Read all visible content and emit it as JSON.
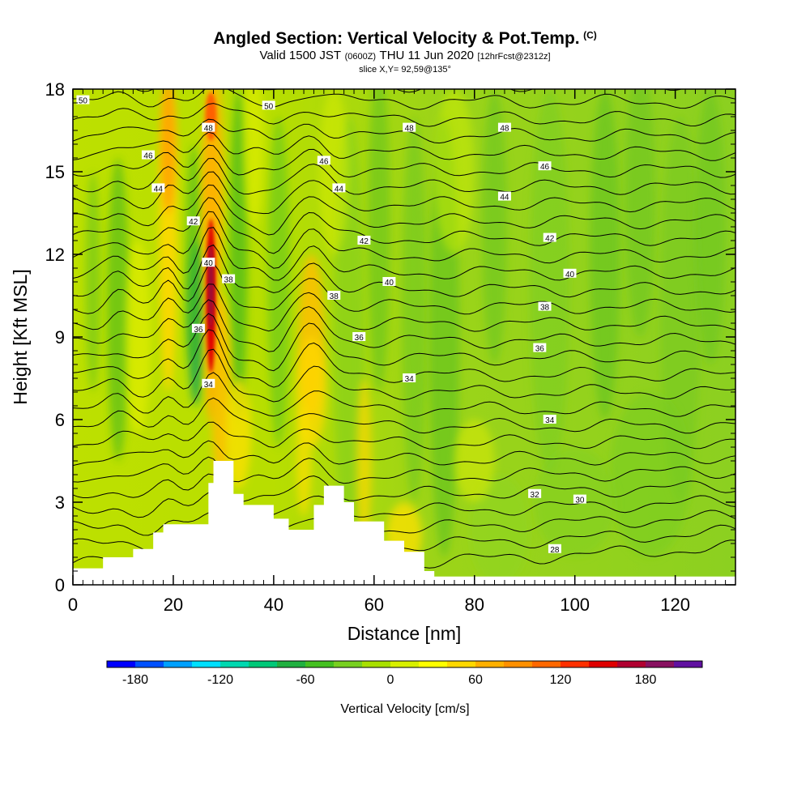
{
  "header": {
    "title": "Angled Section: Vertical Velocity & Pot.Temp.",
    "title_tag": "(C)",
    "valid_prefix": "Valid 1500 JST",
    "valid_z": "(0600Z)",
    "valid_date": "THU 11 Jun 2020",
    "forecast": "[12hrFcst@2312z]",
    "slice": "slice X,Y= 92,59@135°"
  },
  "chart_data": {
    "type": "heatmap",
    "title": "Angled Section: Vertical Velocity & Pot.Temp.",
    "xlabel": "Distance [nm]",
    "ylabel": "Height [Kft MSL]",
    "xlim": [
      0,
      132
    ],
    "ylim": [
      0,
      18
    ],
    "xticks": [
      "0",
      "20",
      "40",
      "60",
      "80",
      "100",
      "120"
    ],
    "yticks": [
      "0",
      "3",
      "6",
      "9",
      "12",
      "15",
      "18"
    ],
    "updraft_cores": [
      {
        "x": 27.5,
        "y_bottom": 7.5,
        "y_top": 13.5,
        "peak_cms": 180
      },
      {
        "x": 19,
        "y_bottom": 7.0,
        "y_top": 18.0,
        "peak_cms": 80
      },
      {
        "x": 48,
        "y_bottom": 6.0,
        "y_top": 11.0,
        "peak_cms": 60
      }
    ],
    "terrain_profile": [
      [
        0,
        0.6
      ],
      [
        6,
        1.0
      ],
      [
        12,
        1.3
      ],
      [
        16,
        1.9
      ],
      [
        18,
        2.2
      ],
      [
        24,
        2.2
      ],
      [
        27,
        3.7
      ],
      [
        28,
        4.5
      ],
      [
        30,
        4.5
      ],
      [
        32,
        3.3
      ],
      [
        34,
        2.9
      ],
      [
        38,
        2.9
      ],
      [
        40,
        2.4
      ],
      [
        43,
        2.0
      ],
      [
        46,
        2.0
      ],
      [
        48,
        2.9
      ],
      [
        50,
        3.6
      ],
      [
        52,
        3.6
      ],
      [
        54,
        3.0
      ],
      [
        56,
        2.3
      ],
      [
        58,
        2.3
      ],
      [
        62,
        1.6
      ],
      [
        66,
        1.2
      ],
      [
        70,
        0.5
      ],
      [
        72,
        0.3
      ],
      [
        132,
        0.3
      ]
    ],
    "theta_contours": [
      {
        "level": "28",
        "label_x": 96,
        "label_y": 1.3
      },
      {
        "level": "30",
        "label_x": 101,
        "label_y": 3.1
      },
      {
        "level": "32",
        "label_x": 92,
        "label_y": 3.3
      },
      {
        "level": "34",
        "label_x": 27,
        "label_y": 7.3
      },
      {
        "level": "34",
        "label_x": 67,
        "label_y": 7.5
      },
      {
        "level": "34",
        "label_x": 95,
        "label_y": 6.0
      },
      {
        "level": "36",
        "label_x": 25,
        "label_y": 9.3
      },
      {
        "level": "36",
        "label_x": 57,
        "label_y": 9.0
      },
      {
        "level": "36",
        "label_x": 93,
        "label_y": 8.6
      },
      {
        "level": "38",
        "label_x": 31,
        "label_y": 11.1
      },
      {
        "level": "38",
        "label_x": 52,
        "label_y": 10.5
      },
      {
        "level": "38",
        "label_x": 94,
        "label_y": 10.1
      },
      {
        "level": "40",
        "label_x": 27,
        "label_y": 11.7
      },
      {
        "level": "40",
        "label_x": 63,
        "label_y": 11.0
      },
      {
        "level": "40",
        "label_x": 99,
        "label_y": 11.3
      },
      {
        "level": "42",
        "label_x": 24,
        "label_y": 13.2
      },
      {
        "level": "42",
        "label_x": 58,
        "label_y": 12.5
      },
      {
        "level": "42",
        "label_x": 95,
        "label_y": 12.6
      },
      {
        "level": "44",
        "label_x": 17,
        "label_y": 14.4
      },
      {
        "level": "44",
        "label_x": 53,
        "label_y": 14.4
      },
      {
        "level": "44",
        "label_x": 86,
        "label_y": 14.1
      },
      {
        "level": "46",
        "label_x": 15,
        "label_y": 15.6
      },
      {
        "level": "46",
        "label_x": 50,
        "label_y": 15.4
      },
      {
        "level": "46",
        "label_x": 94,
        "label_y": 15.2
      },
      {
        "level": "48",
        "label_x": 27,
        "label_y": 16.6
      },
      {
        "level": "48",
        "label_x": 67,
        "label_y": 16.6
      },
      {
        "level": "48",
        "label_x": 86,
        "label_y": 16.6
      },
      {
        "level": "50",
        "label_x": 2,
        "label_y": 17.6
      },
      {
        "level": "50",
        "label_x": 39,
        "label_y": 17.4
      }
    ],
    "colorbar": {
      "title": "Vertical Velocity [cm/s]",
      "range": [
        -200,
        220
      ],
      "tick_values": [
        -180,
        -120,
        -60,
        0,
        60,
        120,
        180
      ],
      "tick_labels": [
        "-180",
        "-120",
        "-60",
        "0",
        "60",
        "120",
        "180"
      ],
      "colors": [
        "#0000ff",
        "#0050ff",
        "#00a0ff",
        "#00e0ff",
        "#00d8b0",
        "#00c878",
        "#20b040",
        "#44c020",
        "#78d020",
        "#a8e000",
        "#d8f000",
        "#ffff00",
        "#ffd800",
        "#ffb000",
        "#ff9000",
        "#ff6800",
        "#ff3000",
        "#e00000",
        "#b00030",
        "#881060",
        "#6010a0"
      ]
    }
  }
}
